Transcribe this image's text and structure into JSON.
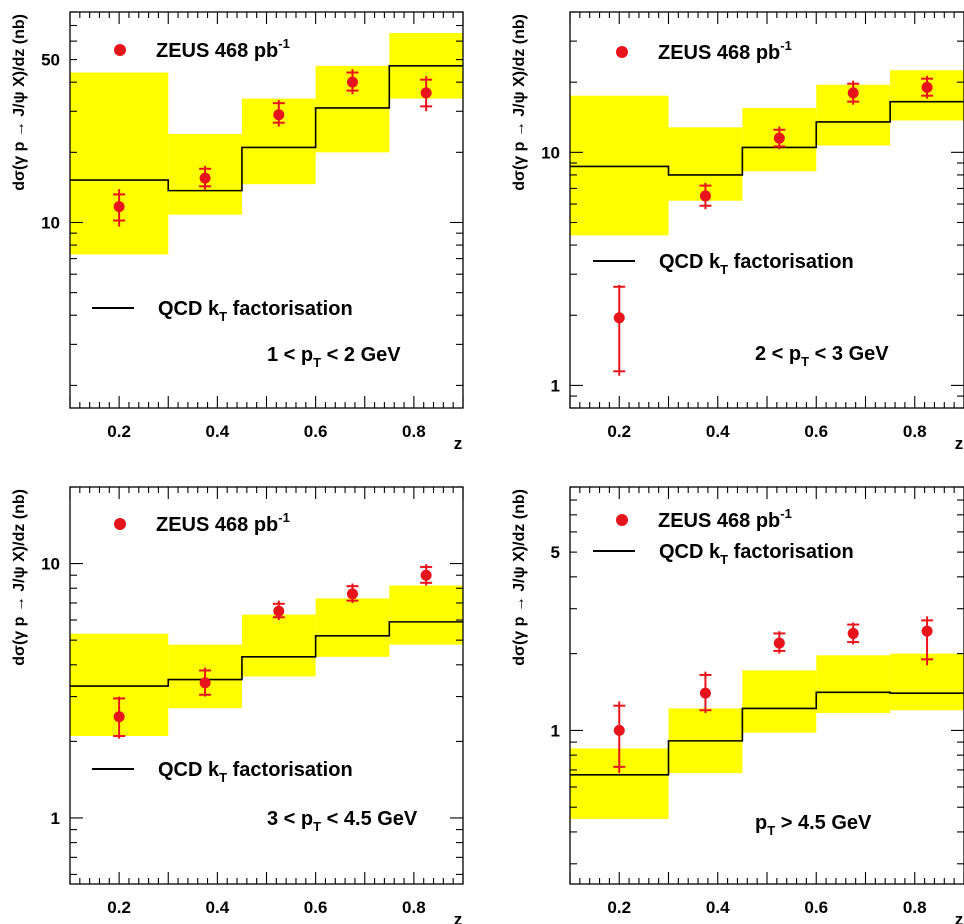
{
  "colors": {
    "band": "#ffff00",
    "data": "#e8141c",
    "theory": "#000000",
    "frame": "#000000"
  },
  "chart_data": [
    {
      "type": "line",
      "ylabel": "dσ(γ p → J/ψ X)/dz (nb)",
      "xlabel": "z",
      "ylog": true,
      "xlim": [
        0.1,
        0.9
      ],
      "ylim": [
        1.6,
        80
      ],
      "xticks": [
        "0.2",
        "0.4",
        "0.6",
        "0.8"
      ],
      "yticks": [
        {
          "v": 10,
          "label": "10"
        },
        {
          "v": 50,
          "label": "50"
        }
      ],
      "legend": {
        "data_label": "ZEUS 468 pb",
        "data_sup": "-1",
        "theory_label": "QCD k",
        "theory_sub": "T",
        "theory_tail": " factorisation"
      },
      "range_label": [
        "1 < p",
        "T",
        " < 2 GeV"
      ],
      "bins": [
        [
          0.1,
          0.3
        ],
        [
          0.3,
          0.45
        ],
        [
          0.45,
          0.6
        ],
        [
          0.6,
          0.75
        ],
        [
          0.75,
          0.9
        ]
      ],
      "theory": [
        15.2,
        13.7,
        21,
        31,
        47
      ],
      "band": [
        [
          7.3,
          44
        ],
        [
          10.8,
          24
        ],
        [
          14.6,
          34
        ],
        [
          20,
          47
        ],
        [
          34,
          65
        ]
      ],
      "points": [
        {
          "x": 0.2,
          "y": 11.7,
          "lo": 9.6,
          "hi": 13.9,
          "slo": 10.2,
          "shi": 13.2
        },
        {
          "x": 0.375,
          "y": 15.5,
          "lo": 13.8,
          "hi": 17.5,
          "slo": 14.3,
          "shi": 17.0
        },
        {
          "x": 0.525,
          "y": 29,
          "lo": 25.8,
          "hi": 33.5,
          "slo": 26.8,
          "shi": 32.5
        },
        {
          "x": 0.675,
          "y": 40,
          "lo": 35.5,
          "hi": 45.5,
          "slo": 36.8,
          "shi": 44
        },
        {
          "x": 0.825,
          "y": 36,
          "lo": 30,
          "hi": 42.5,
          "slo": 31.5,
          "shi": 41
        }
      ]
    },
    {
      "type": "line",
      "ylabel": "dσ(γ p → J/ψ X)/dz (nb)",
      "xlabel": "z",
      "ylog": true,
      "xlim": [
        0.1,
        0.9
      ],
      "ylim": [
        0.8,
        40
      ],
      "xticks": [
        "0.2",
        "0.4",
        "0.6",
        "0.8"
      ],
      "yticks": [
        {
          "v": 1,
          "label": "1"
        },
        {
          "v": 10,
          "label": "10"
        }
      ],
      "legend": {
        "data_label": "ZEUS 468 pb",
        "data_sup": "-1",
        "theory_label": "QCD k",
        "theory_sub": "T",
        "theory_tail": " factorisation"
      },
      "range_label": [
        "2 < p",
        "T",
        " < 3 GeV"
      ],
      "bins": [
        [
          0.1,
          0.3
        ],
        [
          0.3,
          0.45
        ],
        [
          0.45,
          0.6
        ],
        [
          0.6,
          0.75
        ],
        [
          0.75,
          0.9
        ]
      ],
      "theory": [
        8.7,
        8.0,
        10.5,
        13.5,
        16.5
      ],
      "band": [
        [
          4.4,
          17.5
        ],
        [
          6.2,
          12.8
        ],
        [
          8.3,
          15.5
        ],
        [
          10.7,
          19.5
        ],
        [
          13.7,
          22.5
        ]
      ],
      "points": [
        {
          "x": 0.2,
          "y": 1.95,
          "lo": 1.1,
          "hi": 2.7,
          "slo": 1.15,
          "shi": 2.65
        },
        {
          "x": 0.375,
          "y": 6.5,
          "lo": 5.7,
          "hi": 7.4,
          "slo": 5.9,
          "shi": 7.2
        },
        {
          "x": 0.525,
          "y": 11.5,
          "lo": 10.3,
          "hi": 12.9,
          "slo": 10.6,
          "shi": 12.5
        },
        {
          "x": 0.675,
          "y": 18,
          "lo": 16.0,
          "hi": 20.3,
          "slo": 16.5,
          "shi": 19.7
        },
        {
          "x": 0.825,
          "y": 19,
          "lo": 17.0,
          "hi": 21.3,
          "slo": 17.5,
          "shi": 20.7
        }
      ]
    },
    {
      "type": "line",
      "ylabel": "dσ(γ p → J/ψ X)/dz (nb)",
      "xlabel": "z",
      "ylog": true,
      "xlim": [
        0.1,
        0.9
      ],
      "ylim": [
        0.55,
        20
      ],
      "xticks": [
        "0.2",
        "0.4",
        "0.6",
        "0.8"
      ],
      "yticks": [
        {
          "v": 1,
          "label": "1"
        },
        {
          "v": 10,
          "label": "10"
        }
      ],
      "legend": {
        "data_label": "ZEUS 468 pb",
        "data_sup": "-1",
        "theory_label": "QCD k",
        "theory_sub": "T",
        "theory_tail": " factorisation"
      },
      "range_label": [
        "3 < p",
        "T",
        " < 4.5 GeV"
      ],
      "bins": [
        [
          0.1,
          0.3
        ],
        [
          0.3,
          0.45
        ],
        [
          0.45,
          0.6
        ],
        [
          0.6,
          0.75
        ],
        [
          0.75,
          0.9
        ]
      ],
      "theory": [
        3.3,
        3.5,
        4.3,
        5.2,
        5.9
      ],
      "band": [
        [
          2.1,
          5.3
        ],
        [
          2.7,
          4.8
        ],
        [
          3.6,
          6.3
        ],
        [
          4.3,
          7.3
        ],
        [
          4.8,
          8.2
        ]
      ],
      "points": [
        {
          "x": 0.2,
          "y": 2.5,
          "lo": 2.05,
          "hi": 3.0,
          "slo": 2.1,
          "shi": 2.95
        },
        {
          "x": 0.375,
          "y": 3.4,
          "lo": 3.0,
          "hi": 3.9,
          "slo": 3.05,
          "shi": 3.8
        },
        {
          "x": 0.525,
          "y": 6.5,
          "lo": 6.0,
          "hi": 7.15,
          "slo": 6.15,
          "shi": 6.95
        },
        {
          "x": 0.675,
          "y": 7.6,
          "lo": 7.0,
          "hi": 8.35,
          "slo": 7.15,
          "shi": 8.15
        },
        {
          "x": 0.825,
          "y": 9.0,
          "lo": 8.2,
          "hi": 9.95,
          "slo": 8.4,
          "shi": 9.7
        }
      ]
    },
    {
      "type": "line",
      "ylabel": "dσ(γ p → J/ψ X)/dz (nb)",
      "xlabel": "z",
      "ylog": true,
      "xlim": [
        0.1,
        0.9
      ],
      "ylim": [
        0.25,
        9
      ],
      "xticks": [
        "0.2",
        "0.4",
        "0.6",
        "0.8"
      ],
      "yticks": [
        {
          "v": 1,
          "label": "1"
        },
        {
          "v": 5,
          "label": "5"
        }
      ],
      "legend": {
        "data_label": "ZEUS 468 pb",
        "data_sup": "-1",
        "theory_label": "QCD k",
        "theory_sub": "T",
        "theory_tail": " factorisation"
      },
      "range_label": [
        "p",
        "T",
        " > 4.5 GeV"
      ],
      "bins": [
        [
          0.1,
          0.3
        ],
        [
          0.3,
          0.45
        ],
        [
          0.45,
          0.6
        ],
        [
          0.6,
          0.75
        ],
        [
          0.75,
          0.9
        ]
      ],
      "theory": [
        0.67,
        0.91,
        1.22,
        1.41,
        1.4
      ],
      "band": [
        [
          0.45,
          0.85
        ],
        [
          0.68,
          1.22
        ],
        [
          0.98,
          1.72
        ],
        [
          1.17,
          1.97
        ],
        [
          1.2,
          2.0
        ]
      ],
      "points": [
        {
          "x": 0.2,
          "y": 1.0,
          "lo": 0.68,
          "hi": 1.3,
          "slo": 0.72,
          "shi": 1.25
        },
        {
          "x": 0.375,
          "y": 1.4,
          "lo": 1.17,
          "hi": 1.7,
          "slo": 1.2,
          "shi": 1.65
        },
        {
          "x": 0.525,
          "y": 2.2,
          "lo": 2.0,
          "hi": 2.45,
          "slo": 2.05,
          "shi": 2.4
        },
        {
          "x": 0.675,
          "y": 2.4,
          "lo": 2.17,
          "hi": 2.65,
          "slo": 2.22,
          "shi": 2.6
        },
        {
          "x": 0.825,
          "y": 2.45,
          "lo": 1.8,
          "hi": 2.8,
          "slo": 1.9,
          "shi": 2.7
        }
      ]
    }
  ]
}
